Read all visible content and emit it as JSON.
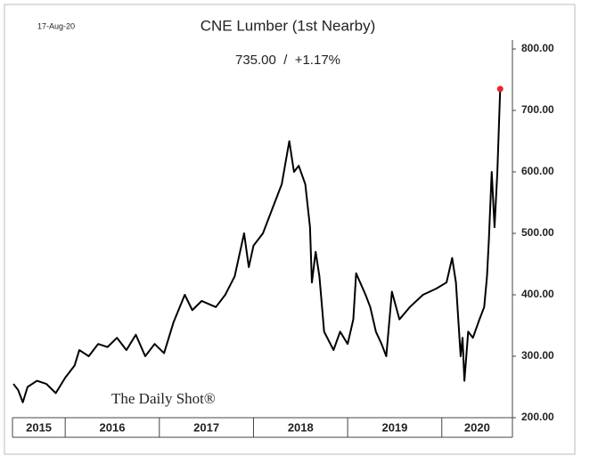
{
  "chart_data": {
    "type": "line",
    "title": "CNE Lumber (1st Nearby)",
    "subtitle": "735.00  /  +1.17%",
    "date": "17-Aug-20",
    "watermark": "The Daily Shot®",
    "x": [
      2015.45,
      2015.5,
      2015.55,
      2015.6,
      2015.7,
      2015.8,
      2015.9,
      2016.0,
      2016.1,
      2016.15,
      2016.25,
      2016.35,
      2016.45,
      2016.55,
      2016.65,
      2016.75,
      2016.85,
      2016.95,
      2017.05,
      2017.1,
      2017.15,
      2017.27,
      2017.35,
      2017.45,
      2017.6,
      2017.7,
      2017.8,
      2017.9,
      2017.95,
      2018.0,
      2018.1,
      2018.2,
      2018.3,
      2018.38,
      2018.43,
      2018.48,
      2018.55,
      2018.6,
      2018.62,
      2018.66,
      2018.7,
      2018.75,
      2018.85,
      2018.92,
      2019.0,
      2019.06,
      2019.09,
      2019.19,
      2019.24,
      2019.3,
      2019.36,
      2019.41,
      2019.47,
      2019.55,
      2019.66,
      2019.8,
      2019.94,
      2020.05,
      2020.11,
      2020.15,
      2020.2,
      2020.22,
      2020.24,
      2020.28,
      2020.33,
      2020.4,
      2020.45,
      2020.48,
      2020.5,
      2020.53,
      2020.56,
      2020.59,
      2020.62
    ],
    "series": [
      {
        "name": "CNE Lumber",
        "color": "#000000",
        "values": [
          255,
          245,
          225,
          250,
          260,
          255,
          240,
          265,
          285,
          310,
          300,
          320,
          315,
          330,
          310,
          335,
          300,
          320,
          305,
          330,
          355,
          400,
          375,
          390,
          380,
          400,
          430,
          500,
          445,
          480,
          500,
          540,
          580,
          650,
          600,
          610,
          580,
          510,
          420,
          470,
          430,
          340,
          310,
          340,
          320,
          360,
          435,
          400,
          380,
          340,
          320,
          300,
          405,
          360,
          380,
          400,
          410,
          420,
          460,
          420,
          300,
          330,
          260,
          340,
          330,
          360,
          380,
          430,
          490,
          600,
          510,
          600,
          735
        ]
      }
    ],
    "last_point_color": "#e8262b",
    "xlim": [
      2015.44,
      2020.75
    ],
    "xticks": [
      2016,
      2017,
      2018,
      2019,
      2020
    ],
    "x_period_labels": [
      "2015",
      "2016",
      "2017",
      "2018",
      "2019",
      "2020"
    ],
    "ylim": [
      200,
      800
    ],
    "yticks": [
      {
        "value": 200,
        "label": "200.00"
      },
      {
        "value": 300,
        "label": "300.00"
      },
      {
        "value": 400,
        "label": "400.00"
      },
      {
        "value": 500,
        "label": "500.00"
      },
      {
        "value": 600,
        "label": "600.00"
      },
      {
        "value": 700,
        "label": "700.00"
      },
      {
        "value": 800,
        "label": "800.00"
      }
    ]
  }
}
